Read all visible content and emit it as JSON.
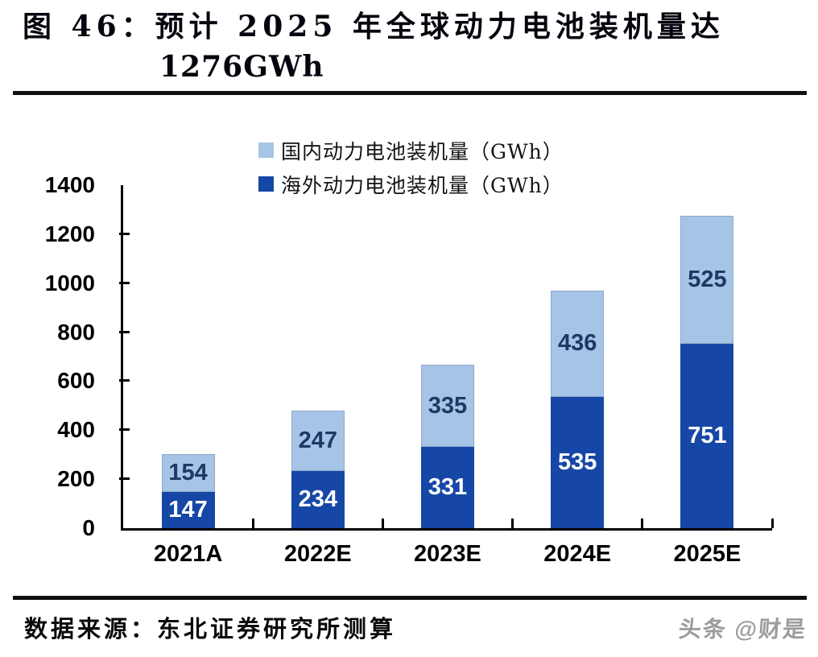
{
  "figure": {
    "title_line1": "图 46：预计 2025 年全球动力电池装机量达",
    "title_line2": "1276GWh",
    "source": "数据来源：东北证券研究所测算",
    "watermark": "头条 @财是"
  },
  "chart_data": {
    "type": "bar",
    "stacked": true,
    "title": "预计 2025 年全球动力电池装机量达 1276GWh",
    "categories": [
      "2021A",
      "2022E",
      "2023E",
      "2024E",
      "2025E"
    ],
    "series": [
      {
        "name": "国内动力电池装机量（GWh）",
        "color": "#A6C4E5",
        "edge_color": "#8FA9CC",
        "label_color": "#1F3864",
        "values": [
          154,
          247,
          335,
          436,
          525
        ]
      },
      {
        "name": "海外动力电池装机量（GWh）",
        "color": "#1747A6",
        "edge_color": "#1747A6",
        "label_color": "#FFFFFF",
        "values": [
          147,
          234,
          331,
          535,
          751
        ]
      }
    ],
    "stack_order_bottom_to_top": [
      1,
      0
    ],
    "ylim": [
      0,
      1400
    ],
    "yticks": [
      0,
      200,
      400,
      600,
      800,
      1000,
      1200,
      1400
    ],
    "grid": false,
    "legend_position": "top"
  }
}
